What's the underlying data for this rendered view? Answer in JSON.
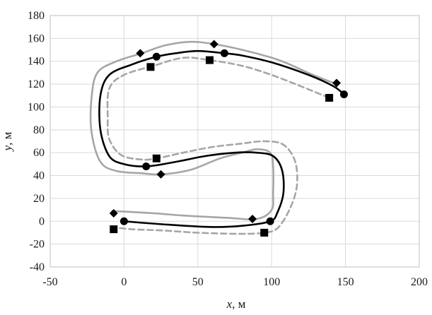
{
  "chart_data": {
    "type": "scatter",
    "title": "",
    "xlabel": {
      "var": "x",
      "unit": ", м"
    },
    "ylabel": {
      "var": "y",
      "unit": ", м"
    },
    "xlim": [
      -50,
      200
    ],
    "ylim": [
      -40,
      180
    ],
    "xticks": [
      "-50",
      "0",
      "50",
      "100",
      "150",
      "200"
    ],
    "yticks": [
      "-40",
      "-20",
      "0",
      "20",
      "40",
      "60",
      "80",
      "100",
      "120",
      "140",
      "160",
      "180"
    ],
    "grid": true,
    "legend": "none",
    "colors": {
      "black_line": "#000000",
      "gray_solid_line": "#a6a6a6",
      "gray_dashed_line": "#a6a6a6",
      "grid": "#d9d9d9",
      "markers": "#000000"
    },
    "series": [
      {
        "style": "line-solid-black",
        "values": [
          [
            149,
            111
          ],
          [
            142,
            118
          ],
          [
            125,
            128
          ],
          [
            100,
            139
          ],
          [
            80,
            145
          ],
          [
            68,
            147
          ],
          [
            50,
            149
          ],
          [
            35,
            147
          ],
          [
            22,
            144
          ],
          [
            5,
            137
          ],
          [
            -10,
            128
          ],
          [
            -16,
            110
          ],
          [
            -16,
            80
          ],
          [
            -10,
            57
          ],
          [
            0,
            50
          ],
          [
            15,
            48
          ],
          [
            35,
            52
          ],
          [
            55,
            57
          ],
          [
            75,
            60
          ],
          [
            90,
            60
          ],
          [
            101,
            57
          ],
          [
            107,
            45
          ],
          [
            108,
            25
          ],
          [
            104,
            8
          ],
          [
            99,
            0
          ],
          [
            80,
            -4
          ],
          [
            60,
            -5
          ],
          [
            30,
            -3
          ],
          [
            0,
            0
          ]
        ]
      },
      {
        "style": "line-solid-gray",
        "values": [
          [
            144,
            120
          ],
          [
            128,
            128
          ],
          [
            105,
            141
          ],
          [
            80,
            150
          ],
          [
            61,
            155
          ],
          [
            45,
            157
          ],
          [
            28,
            154
          ],
          [
            12,
            147
          ],
          [
            -5,
            140
          ],
          [
            -18,
            130
          ],
          [
            -22,
            108
          ],
          [
            -22,
            78
          ],
          [
            -16,
            52
          ],
          [
            -5,
            44
          ],
          [
            12,
            42
          ],
          [
            25,
            41
          ],
          [
            45,
            45
          ],
          [
            65,
            55
          ],
          [
            80,
            60
          ],
          [
            90,
            63
          ],
          [
            99,
            60
          ],
          [
            101,
            48
          ],
          [
            101,
            25
          ],
          [
            100,
            10
          ],
          [
            90,
            2
          ],
          [
            70,
            3
          ],
          [
            40,
            5
          ],
          [
            20,
            7
          ],
          [
            -8,
            9
          ]
        ]
      },
      {
        "style": "line-dashed-gray",
        "values": [
          [
            139,
            108
          ],
          [
            120,
            118
          ],
          [
            100,
            128
          ],
          [
            80,
            136
          ],
          [
            58,
            141
          ],
          [
            40,
            143
          ],
          [
            20,
            136
          ],
          [
            0,
            128
          ],
          [
            -10,
            116
          ],
          [
            -11,
            90
          ],
          [
            -10,
            72
          ],
          [
            -2,
            58
          ],
          [
            12,
            54
          ],
          [
            22,
            55
          ],
          [
            40,
            60
          ],
          [
            60,
            65
          ],
          [
            80,
            68
          ],
          [
            95,
            70
          ],
          [
            108,
            67
          ],
          [
            116,
            52
          ],
          [
            117,
            30
          ],
          [
            112,
            10
          ],
          [
            104,
            -6
          ],
          [
            95,
            -10
          ],
          [
            80,
            -11
          ],
          [
            50,
            -10
          ],
          [
            25,
            -8
          ],
          [
            5,
            -7
          ],
          [
            -8,
            -5
          ]
        ]
      },
      {
        "style": "marker-circle",
        "values": [
          [
            149,
            111
          ],
          [
            68,
            147
          ],
          [
            22,
            144
          ],
          [
            15,
            48
          ],
          [
            99,
            0
          ],
          [
            0,
            0
          ]
        ]
      },
      {
        "style": "marker-diamond",
        "values": [
          [
            144,
            121
          ],
          [
            61,
            155
          ],
          [
            11,
            147
          ],
          [
            25,
            41
          ],
          [
            87,
            2
          ],
          [
            -7,
            7
          ]
        ]
      },
      {
        "style": "marker-square",
        "values": [
          [
            139,
            108
          ],
          [
            58,
            141
          ],
          [
            18,
            135
          ],
          [
            22,
            55
          ],
          [
            95,
            -10
          ],
          [
            -7,
            -7
          ]
        ]
      }
    ]
  }
}
